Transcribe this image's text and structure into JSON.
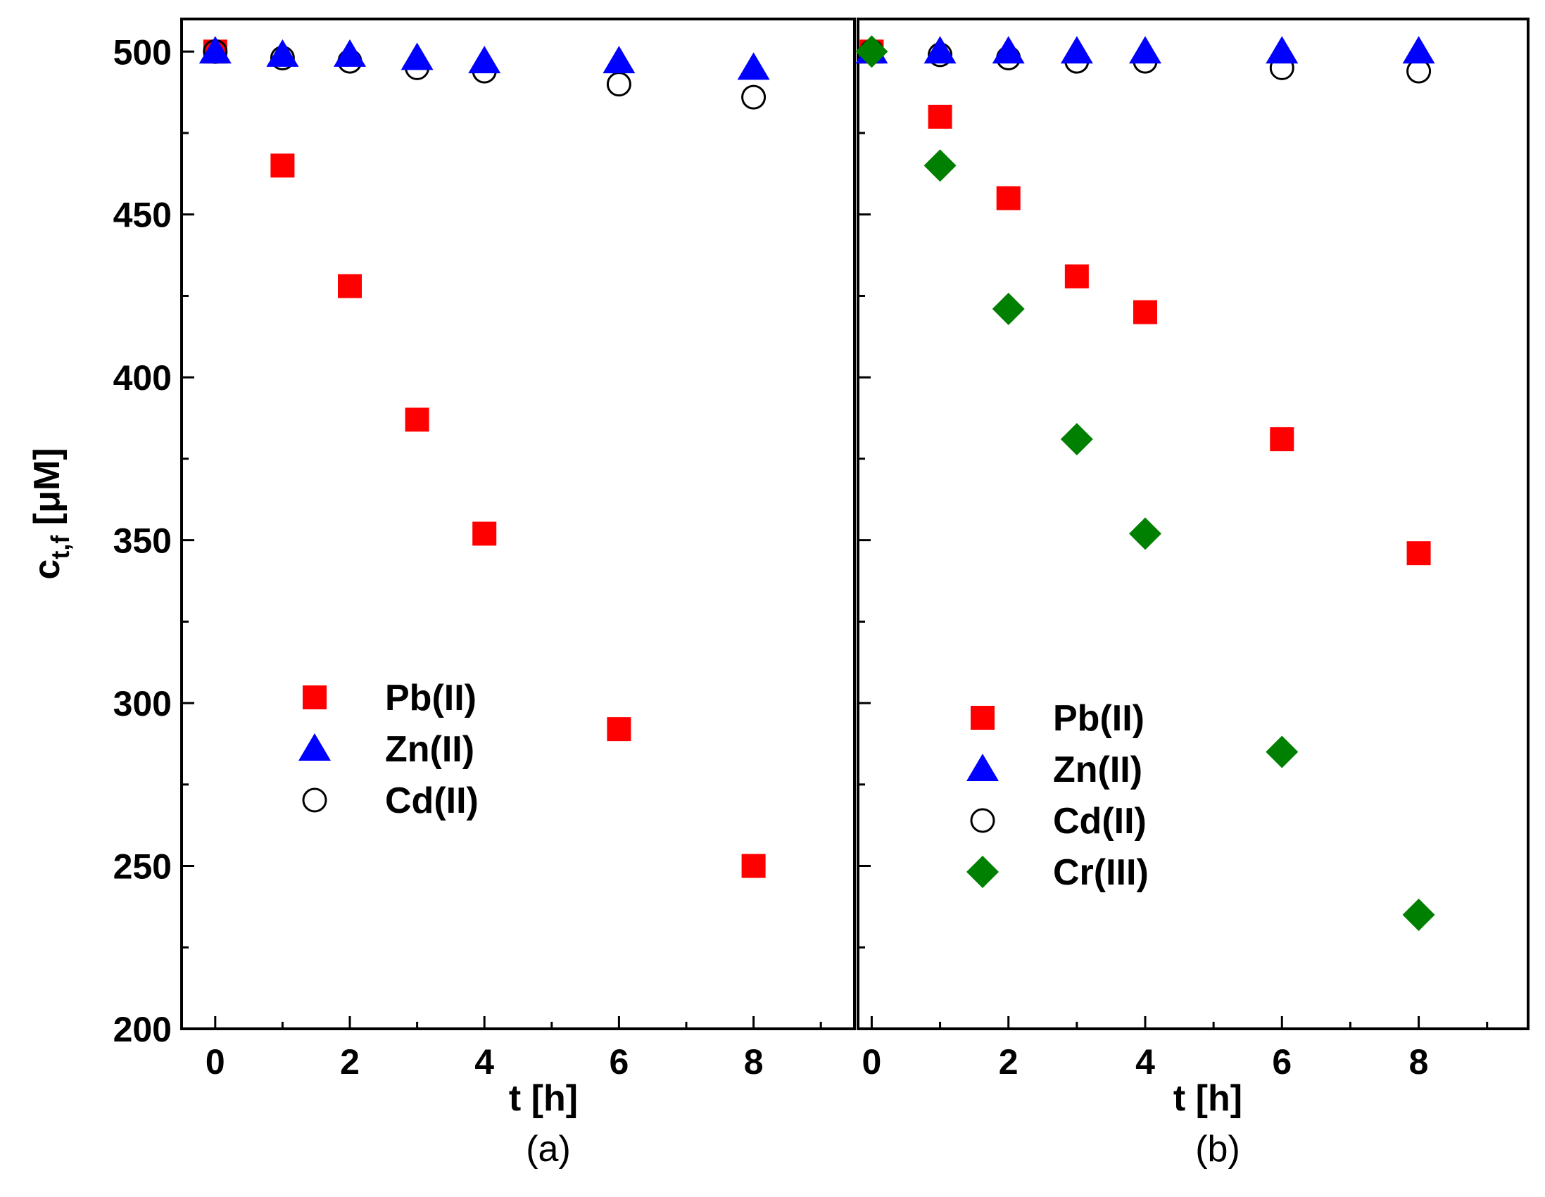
{
  "figure": {
    "shared_ylabel": "c",
    "shared_ylabel_sub": "t,f",
    "shared_ylabel_unit": " [μM]"
  },
  "chart_data": [
    {
      "type": "scatter",
      "panel": "a",
      "caption": "(a)",
      "xlabel": "t [h]",
      "ylabel": "c_t,f [μM]",
      "xlim": [
        -0.5,
        9.5
      ],
      "ylim": [
        200,
        510
      ],
      "xticks": [
        0,
        2,
        4,
        6,
        8
      ],
      "yticks": [
        200,
        250,
        300,
        350,
        400,
        450,
        500
      ],
      "legend_position": "center-left",
      "series": [
        {
          "name": "Pb(II)",
          "marker": "square",
          "color": "#ff0000",
          "x": [
            0,
            1,
            2,
            3,
            4,
            6,
            8
          ],
          "y": [
            500,
            465,
            428,
            387,
            352,
            292,
            250
          ]
        },
        {
          "name": "Zn(II)",
          "marker": "triangle",
          "color": "#0000ff",
          "x": [
            0,
            1,
            2,
            3,
            4,
            6,
            8
          ],
          "y": [
            500,
            499,
            499,
            498,
            497,
            497,
            495
          ]
        },
        {
          "name": "Cd(II)",
          "marker": "circle-open",
          "color": "#000000",
          "x": [
            0,
            1,
            2,
            3,
            4,
            6,
            8
          ],
          "y": [
            500,
            498,
            497,
            495,
            494,
            490,
            486
          ]
        }
      ]
    },
    {
      "type": "scatter",
      "panel": "b",
      "caption": "(b)",
      "xlabel": "t [h]",
      "ylabel": "c_t,f [μM]",
      "xlim": [
        -0.2,
        9.6
      ],
      "ylim": [
        200,
        510
      ],
      "xticks": [
        0,
        2,
        4,
        6,
        8
      ],
      "yticks": [
        200,
        250,
        300,
        350,
        400,
        450,
        500
      ],
      "legend_position": "center-left",
      "series": [
        {
          "name": "Pb(II)",
          "marker": "square",
          "color": "#ff0000",
          "x": [
            0,
            1,
            2,
            3,
            4,
            6,
            8
          ],
          "y": [
            500,
            480,
            455,
            431,
            420,
            381,
            346
          ]
        },
        {
          "name": "Zn(II)",
          "marker": "triangle",
          "color": "#0000ff",
          "x": [
            0,
            1,
            2,
            3,
            4,
            6,
            8
          ],
          "y": [
            500,
            500,
            500,
            500,
            500,
            500,
            500
          ]
        },
        {
          "name": "Cd(II)",
          "marker": "circle-open",
          "color": "#000000",
          "x": [
            0,
            1,
            2,
            3,
            4,
            6,
            8
          ],
          "y": [
            500,
            499,
            498,
            497,
            497,
            495,
            494
          ]
        },
        {
          "name": "Cr(III)",
          "marker": "diamond",
          "color": "#008000",
          "x": [
            0,
            1,
            2,
            3,
            4,
            6,
            8
          ],
          "y": [
            500,
            465,
            421,
            381,
            352,
            285,
            235
          ]
        }
      ]
    }
  ]
}
